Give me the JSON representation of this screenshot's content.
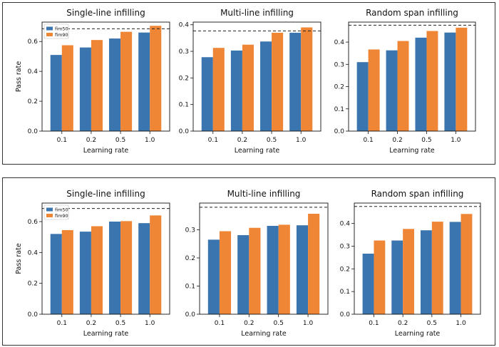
{
  "colors": {
    "fim50": "#3b75af",
    "fim90": "#ef8636",
    "frame": "#333333",
    "ref_line": "#222222"
  },
  "chart_data": [
    {
      "type": "bar",
      "title": "Single-line infilling",
      "categories": [
        "0.1",
        "0.2",
        "0.5",
        "1.0"
      ],
      "series": [
        {
          "name": "fim50",
          "values": [
            0.51,
            0.56,
            0.62,
            0.66
          ]
        },
        {
          "name": "fim90",
          "values": [
            0.575,
            0.61,
            0.665,
            0.705
          ]
        }
      ],
      "reference_line": 0.685,
      "xlabel": "Learning rate",
      "ylabel": "Pass rate",
      "ylim": [
        0,
        0.73
      ],
      "yticks": [
        0.0,
        0.2,
        0.4,
        0.6
      ],
      "show_legend": true,
      "legend_position": "top-left"
    },
    {
      "type": "bar",
      "title": "Multi-line infilling",
      "categories": [
        "0.1",
        "0.2",
        "0.5",
        "1.0"
      ],
      "series": [
        {
          "name": "fim50",
          "values": [
            0.278,
            0.303,
            0.337,
            0.37
          ]
        },
        {
          "name": "fim90",
          "values": [
            0.313,
            0.325,
            0.37,
            0.39
          ]
        }
      ],
      "reference_line": 0.377,
      "xlabel": "Learning rate",
      "ylabel": "",
      "ylim": [
        0,
        0.41
      ],
      "yticks": [
        0.0,
        0.1,
        0.2,
        0.3,
        0.4
      ],
      "show_legend": false
    },
    {
      "type": "bar",
      "title": "Random span infilling",
      "categories": [
        "0.1",
        "0.2",
        "0.5",
        "1.0"
      ],
      "series": [
        {
          "name": "fim50",
          "values": [
            0.31,
            0.363,
            0.42,
            0.443
          ]
        },
        {
          "name": "fim90",
          "values": [
            0.367,
            0.405,
            0.45,
            0.465
          ]
        }
      ],
      "reference_line": 0.476,
      "xlabel": "Learning rate",
      "ylabel": "",
      "ylim": [
        0,
        0.49
      ],
      "yticks": [
        0.0,
        0.1,
        0.2,
        0.3,
        0.4
      ],
      "show_legend": false
    },
    {
      "type": "bar",
      "title": "Single-line infilling",
      "categories": [
        "0.1",
        "0.2",
        "0.5",
        "1.0"
      ],
      "series": [
        {
          "name": "fim50",
          "values": [
            0.52,
            0.535,
            0.6,
            0.59
          ]
        },
        {
          "name": "fim90",
          "values": [
            0.545,
            0.57,
            0.603,
            0.64
          ]
        }
      ],
      "reference_line": 0.685,
      "xlabel": "Learning rate",
      "ylabel": "Pass rate",
      "ylim": [
        0,
        0.72
      ],
      "yticks": [
        0.0,
        0.2,
        0.4,
        0.6
      ],
      "show_legend": true,
      "legend_position": "top-left"
    },
    {
      "type": "bar",
      "title": "Multi-line infilling",
      "categories": [
        "0.1",
        "0.2",
        "0.5",
        "1.0"
      ],
      "series": [
        {
          "name": "fim50",
          "values": [
            0.265,
            0.281,
            0.314,
            0.316
          ]
        },
        {
          "name": "fim90",
          "values": [
            0.295,
            0.307,
            0.318,
            0.357
          ]
        }
      ],
      "reference_line": 0.38,
      "xlabel": "Learning rate",
      "ylabel": "",
      "ylim": [
        0,
        0.395
      ],
      "yticks": [
        0.0,
        0.1,
        0.2,
        0.3
      ],
      "show_legend": false
    },
    {
      "type": "bar",
      "title": "Random span infilling",
      "categories": [
        "0.1",
        "0.2",
        "0.5",
        "1.0"
      ],
      "series": [
        {
          "name": "fim50",
          "values": [
            0.267,
            0.325,
            0.37,
            0.407
          ]
        },
        {
          "name": "fim90",
          "values": [
            0.325,
            0.376,
            0.408,
            0.442
          ]
        }
      ],
      "reference_line": 0.475,
      "xlabel": "Learning rate",
      "ylabel": "",
      "ylim": [
        0,
        0.49
      ],
      "yticks": [
        0.0,
        0.1,
        0.2,
        0.3,
        0.4
      ],
      "show_legend": false
    }
  ]
}
